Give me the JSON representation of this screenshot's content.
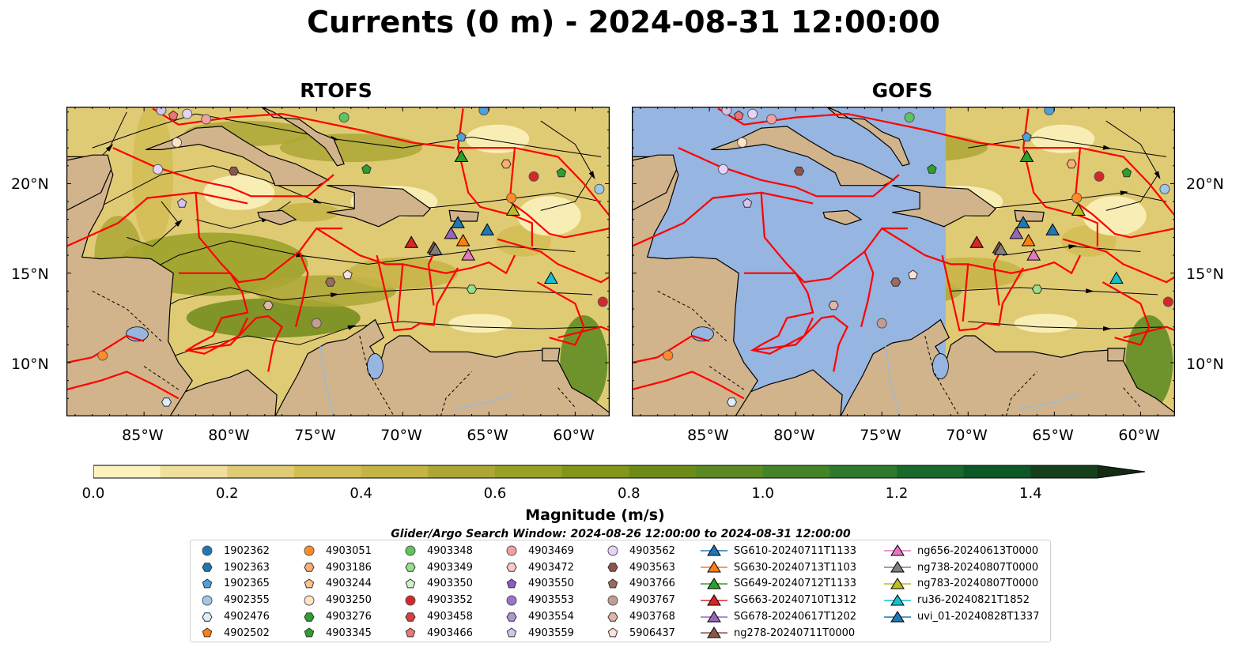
{
  "title": "Currents (0 m) - 2024-08-31 12:00:00",
  "panels": [
    {
      "title": "RTOFS"
    },
    {
      "title": "GOFS"
    }
  ],
  "axes": {
    "x_ticks": [
      "85°W",
      "80°W",
      "75°W",
      "70°W",
      "65°W",
      "60°W"
    ],
    "y_ticks": [
      "20°N",
      "15°N",
      "10°N"
    ],
    "lon_range": [
      -89.5,
      -58
    ],
    "lat_range": [
      7,
      24.3
    ]
  },
  "colorbar": {
    "label": "Magnitude (m/s)",
    "ticks": [
      "0.0",
      "0.2",
      "0.4",
      "0.6",
      "0.8",
      "1.0",
      "1.2",
      "1.4"
    ],
    "min": 0.0,
    "max": 1.5,
    "step": 0.1,
    "extend": "max",
    "colors": [
      "#fbf2bd",
      "#efdf9a",
      "#e0cb75",
      "#d2bd55",
      "#c4b445",
      "#aca735",
      "#98a025",
      "#84961a",
      "#6e8b1a",
      "#5b8a20",
      "#448427",
      "#2e7a2c",
      "#18692c",
      "#0e5726",
      "#16401c",
      "#132a14"
    ]
  },
  "search_window": "Glider/Argo Search Window: 2024-08-26 12:00:00 to 2024-08-31 12:00:00",
  "colors": {
    "land": "#d2b48c",
    "ocean_gofs_missing": "#96b5e0",
    "eez_lines": "#ff0000",
    "streamlines": "#000000"
  },
  "legend": [
    [
      {
        "label": "1902362",
        "marker": "circle",
        "color": "#1f77b4"
      },
      {
        "label": "1902363",
        "marker": "hexagon",
        "color": "#1f77b4"
      },
      {
        "label": "1902365",
        "marker": "pentagon",
        "color": "#4f9fd8"
      },
      {
        "label": "4902355",
        "marker": "circle",
        "color": "#9dc8ec"
      },
      {
        "label": "4902476",
        "marker": "hexagon",
        "color": "#daeefd"
      },
      {
        "label": "4902502",
        "marker": "pentagon",
        "color": "#ff7f0e"
      }
    ],
    [
      {
        "label": "4903051",
        "marker": "circle",
        "color": "#ff8c28"
      },
      {
        "label": "4903186",
        "marker": "hexagon",
        "color": "#ffac6e"
      },
      {
        "label": "4903244",
        "marker": "pentagon",
        "color": "#ffc08c"
      },
      {
        "label": "4903250",
        "marker": "circle",
        "color": "#ffe4c4"
      },
      {
        "label": "4903276",
        "marker": "hexagon",
        "color": "#2ca02c"
      },
      {
        "label": "4903345",
        "marker": "pentagon",
        "color": "#2ca02c"
      }
    ],
    [
      {
        "label": "4903348",
        "marker": "circle",
        "color": "#5ec45e"
      },
      {
        "label": "4903349",
        "marker": "hexagon",
        "color": "#98df8a"
      },
      {
        "label": "4903350",
        "marker": "pentagon",
        "color": "#cdf2c6"
      },
      {
        "label": "4903352",
        "marker": "circle",
        "color": "#d62728"
      },
      {
        "label": "4903458",
        "marker": "hexagon",
        "color": "#d9403f"
      },
      {
        "label": "4903466",
        "marker": "pentagon",
        "color": "#f07474"
      }
    ],
    [
      {
        "label": "4903469",
        "marker": "circle",
        "color": "#f4a0a0"
      },
      {
        "label": "4903472",
        "marker": "hexagon",
        "color": "#ffc8c8"
      },
      {
        "label": "4903550",
        "marker": "pentagon",
        "color": "#8f5cc1"
      },
      {
        "label": "4903553",
        "marker": "circle",
        "color": "#9d72cc"
      },
      {
        "label": "4903554",
        "marker": "hexagon",
        "color": "#b093d8"
      },
      {
        "label": "4903559",
        "marker": "pentagon",
        "color": "#d5c3ef"
      }
    ],
    [
      {
        "label": "4903562",
        "marker": "circle",
        "color": "#e5d4f8"
      },
      {
        "label": "4903563",
        "marker": "hexagon",
        "color": "#8c564b"
      },
      {
        "label": "4903766",
        "marker": "pentagon",
        "color": "#9c6a5f"
      },
      {
        "label": "4903767",
        "marker": "circle",
        "color": "#c49c94"
      },
      {
        "label": "4903768",
        "marker": "hexagon",
        "color": "#e0b6a8"
      },
      {
        "label": "5906437",
        "marker": "pentagon",
        "color": "#fce2d6"
      }
    ],
    [
      {
        "label": "SG610-20240711T1133",
        "marker": "triangle",
        "color": "#1f77b4"
      },
      {
        "label": "SG630-20240713T1103",
        "marker": "triangle",
        "color": "#ff7f0e"
      },
      {
        "label": "SG649-20240712T1133",
        "marker": "triangle",
        "color": "#2ca02c"
      },
      {
        "label": "SG663-20240710T1312",
        "marker": "triangle",
        "color": "#d62728"
      },
      {
        "label": "SG678-20240617T1202",
        "marker": "triangle",
        "color": "#9467bd"
      },
      {
        "label": "ng278-20240711T0000",
        "marker": "triangle",
        "color": "#8c564b"
      }
    ],
    [
      {
        "label": "ng656-20240613T0000",
        "marker": "triangle",
        "color": "#e377c2"
      },
      {
        "label": "ng738-20240807T0000",
        "marker": "triangle",
        "color": "#7f7f7f"
      },
      {
        "label": "ng783-20240807T0000",
        "marker": "triangle",
        "color": "#bcbd22"
      },
      {
        "label": "ru36-20240821T1852",
        "marker": "triangle",
        "color": "#17becf"
      },
      {
        "label": "uvi_01-20240828T1337",
        "marker": "triangle",
        "color": "#1f77b4"
      }
    ]
  ],
  "observations": [
    {
      "lon": -83.1,
      "lat": 22.3,
      "marker": "circle",
      "color": "#ffe4c4"
    },
    {
      "lon": -84.2,
      "lat": 20.8,
      "marker": "circle",
      "color": "#e5d4f8"
    },
    {
      "lon": -81.4,
      "lat": 23.6,
      "marker": "circle",
      "color": "#f4a0a0"
    },
    {
      "lon": -82.5,
      "lat": 23.9,
      "marker": "circle",
      "color": "#e5d4f8"
    },
    {
      "lon": -83.3,
      "lat": 23.8,
      "marker": "pentagon",
      "color": "#f07474"
    },
    {
      "lon": -84.0,
      "lat": 24.1,
      "marker": "circle",
      "color": "#d5c3ef"
    },
    {
      "lon": -73.4,
      "lat": 23.7,
      "marker": "circle",
      "color": "#5ec45e"
    },
    {
      "lon": -65.3,
      "lat": 24.1,
      "marker": "circle",
      "color": "#4f9fd8"
    },
    {
      "lon": -66.6,
      "lat": 22.6,
      "marker": "pentagon",
      "color": "#4f9fd8"
    },
    {
      "lon": -79.8,
      "lat": 20.7,
      "marker": "hexagon",
      "color": "#8c564b"
    },
    {
      "lon": -82.8,
      "lat": 18.9,
      "marker": "pentagon",
      "color": "#d5c3ef"
    },
    {
      "lon": -72.1,
      "lat": 20.8,
      "marker": "pentagon",
      "color": "#2ca02c"
    },
    {
      "lon": -62.4,
      "lat": 20.4,
      "marker": "circle",
      "color": "#d62728"
    },
    {
      "lon": -64.0,
      "lat": 21.1,
      "marker": "hexagon",
      "color": "#ffac6e"
    },
    {
      "lon": -60.8,
      "lat": 20.6,
      "marker": "pentagon",
      "color": "#2ca02c"
    },
    {
      "lon": -58.6,
      "lat": 19.7,
      "marker": "circle",
      "color": "#9dc8ec"
    },
    {
      "lon": -63.7,
      "lat": 19.2,
      "marker": "circle",
      "color": "#ff8c28"
    },
    {
      "lon": -66.0,
      "lat": 14.1,
      "marker": "hexagon",
      "color": "#98df8a"
    },
    {
      "lon": -74.2,
      "lat": 14.5,
      "marker": "hexagon",
      "color": "#9c6a5f"
    },
    {
      "lon": -73.2,
      "lat": 14.9,
      "marker": "pentagon",
      "color": "#fce2d6"
    },
    {
      "lon": -77.8,
      "lat": 13.2,
      "marker": "hexagon",
      "color": "#e0b6a8"
    },
    {
      "lon": -75.0,
      "lat": 12.2,
      "marker": "circle",
      "color": "#c49c94"
    },
    {
      "lon": -87.4,
      "lat": 10.4,
      "marker": "circle",
      "color": "#ff8c28"
    },
    {
      "lon": -83.7,
      "lat": 7.8,
      "marker": "hexagon",
      "color": "#daeefd"
    },
    {
      "lon": -58.4,
      "lat": 13.4,
      "marker": "circle",
      "color": "#d62728"
    }
  ],
  "gliders": [
    {
      "lon": -69.5,
      "lat": 16.7,
      "color": "#d62728"
    },
    {
      "lon": -68.2,
      "lat": 16.4,
      "color": "#8c564b"
    },
    {
      "lon": -68.1,
      "lat": 16.3,
      "color": "#7f7f7f"
    },
    {
      "lon": -67.2,
      "lat": 17.2,
      "color": "#9467bd"
    },
    {
      "lon": -66.8,
      "lat": 17.8,
      "color": "#1f77b4"
    },
    {
      "lon": -66.5,
      "lat": 16.8,
      "color": "#ff7f0e"
    },
    {
      "lon": -66.2,
      "lat": 16.0,
      "color": "#e377c2"
    },
    {
      "lon": -65.1,
      "lat": 17.4,
      "color": "#1f77b4"
    },
    {
      "lon": -66.6,
      "lat": 21.5,
      "color": "#2ca02c"
    },
    {
      "lon": -63.6,
      "lat": 18.5,
      "color": "#bcbd22"
    },
    {
      "lon": -61.4,
      "lat": 14.7,
      "color": "#17becf"
    }
  ]
}
